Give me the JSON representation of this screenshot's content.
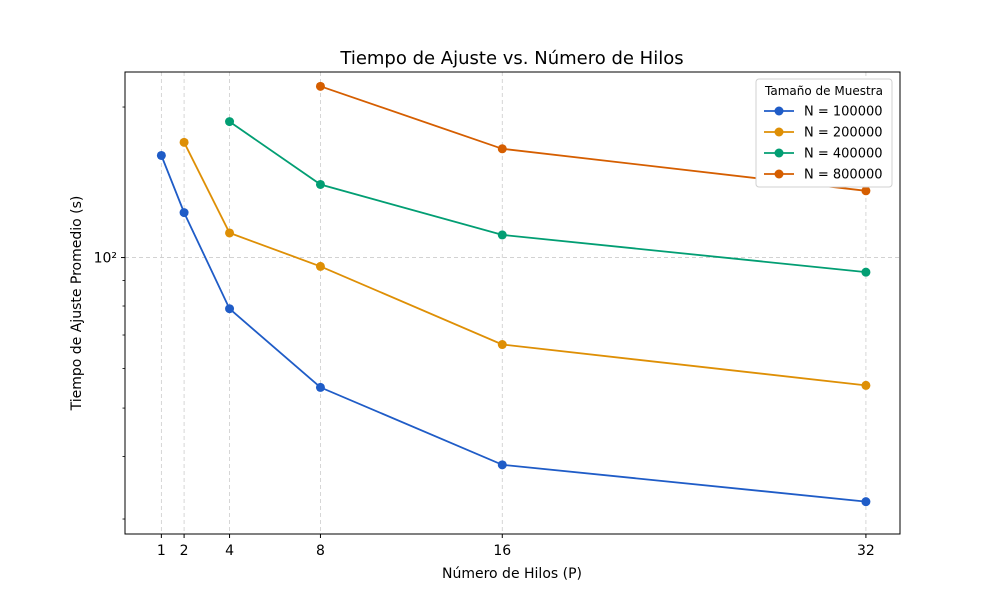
{
  "chart_data": {
    "type": "line",
    "title": "Tiempo de Ajuste vs. Número de Hilos",
    "xlabel": "Número de Hilos (P)",
    "ylabel": "Tiempo de Ajuste Promedio (s)",
    "yscale": "log",
    "xlim": [
      -0.6,
      33.5
    ],
    "ylim": [
      28,
      235
    ],
    "x_ticks": [
      1,
      2,
      4,
      8,
      16,
      32
    ],
    "y_ticks": [
      {
        "value": 100,
        "label": "10²"
      }
    ],
    "grid": true,
    "legend": {
      "title": "Tamaño de Muestra",
      "placement": "top-right"
    },
    "series": [
      {
        "name": "N = 100000",
        "color": "#1f5cc7",
        "x": [
          1,
          2,
          4,
          8,
          16,
          32
        ],
        "y": [
          160,
          123,
          79,
          55,
          38.5,
          32.5
        ]
      },
      {
        "name": "N = 200000",
        "color": "#de8f05",
        "x": [
          2,
          4,
          8,
          16,
          32
        ],
        "y": [
          170,
          112,
          96,
          67,
          55.5
        ]
      },
      {
        "name": "N = 400000",
        "color": "#029e73",
        "x": [
          4,
          8,
          16,
          32
        ],
        "y": [
          187,
          140,
          111,
          93.5
        ]
      },
      {
        "name": "N = 800000",
        "color": "#d55e00",
        "x": [
          8,
          16,
          32
        ],
        "y": [
          220,
          165,
          136
        ]
      }
    ]
  }
}
